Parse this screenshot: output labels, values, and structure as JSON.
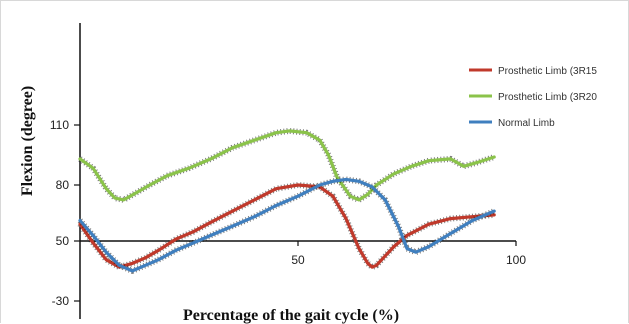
{
  "chart_data": {
    "type": "line",
    "title": "",
    "xlabel": "Percentage of the gait cycle (%)",
    "ylabel": "Flexion (degree)",
    "x_ticks": [
      {
        "value": 50,
        "label": "50"
      },
      {
        "value": 100,
        "label": "100"
      }
    ],
    "y_ticks": [
      {
        "value": 110,
        "label": "110"
      },
      {
        "value": 80,
        "label": "80"
      },
      {
        "value": 50,
        "label": "50"
      },
      {
        "value": -30,
        "label": "-30"
      }
    ],
    "xlim": [
      0,
      100
    ],
    "grid": false,
    "legend_position": "right",
    "series": [
      {
        "name": "Prosthetic Limb (3R15",
        "color": "#c0392b",
        "x": [
          0,
          3,
          6,
          9,
          12,
          15,
          18,
          22,
          26,
          30,
          35,
          40,
          45,
          50,
          55,
          58,
          61,
          64,
          66,
          67,
          68,
          70,
          72,
          75,
          80,
          85,
          90,
          95
        ],
        "y": [
          59,
          49,
          40,
          36,
          38,
          41,
          45,
          51,
          55,
          60,
          66,
          72,
          78,
          80,
          79,
          74,
          62,
          46,
          38,
          36,
          37,
          42,
          47,
          53,
          59,
          62,
          63,
          64
        ]
      },
      {
        "name": "Prosthetic Limb (3R20",
        "color": "#8bc34a",
        "x": [
          0,
          3,
          6,
          8,
          10,
          13,
          16,
          20,
          25,
          30,
          35,
          40,
          45,
          48,
          52,
          55,
          57,
          59,
          62,
          64,
          66,
          68,
          72,
          76,
          80,
          85,
          88,
          91,
          95
        ],
        "y": [
          94,
          89,
          78,
          73,
          72,
          76,
          80,
          85,
          89,
          94,
          100,
          104,
          108,
          109,
          108,
          104,
          96,
          84,
          74,
          72,
          75,
          80,
          86,
          90,
          93,
          94,
          90,
          92,
          95
        ]
      },
      {
        "name": "Normal Limb",
        "color": "#3f7fbf",
        "x": [
          0,
          3,
          6,
          9,
          12,
          15,
          18,
          22,
          26,
          30,
          35,
          40,
          45,
          50,
          55,
          58,
          61,
          64,
          67,
          70,
          73,
          75,
          77,
          80,
          85,
          90,
          95
        ],
        "y": [
          61,
          53,
          44,
          37,
          34,
          37,
          40,
          45,
          49,
          53,
          58,
          63,
          69,
          74,
          80,
          82,
          83,
          82,
          79,
          72,
          58,
          46,
          44,
          47,
          54,
          61,
          66
        ]
      }
    ]
  }
}
